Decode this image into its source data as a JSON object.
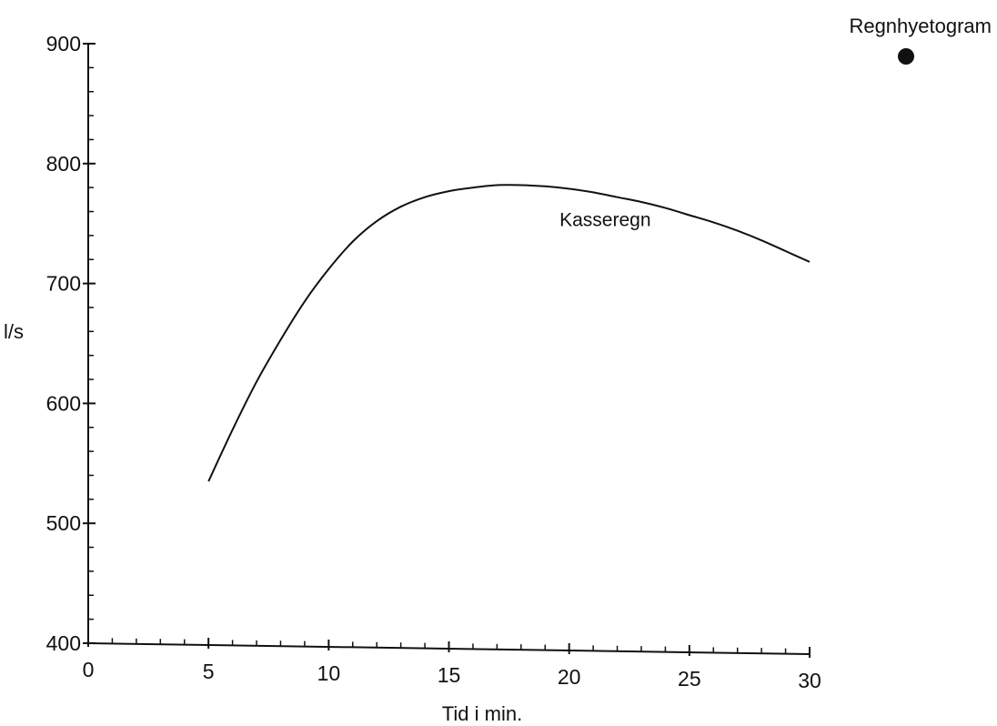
{
  "chart_data": {
    "type": "line",
    "title": "",
    "xlabel": "Tid i min.",
    "ylabel": "l/s",
    "xlim": [
      0,
      30
    ],
    "ylim": [
      400,
      900
    ],
    "x_ticks_major": [
      0,
      5,
      10,
      15,
      20,
      25,
      30
    ],
    "y_ticks_major": [
      400,
      500,
      600,
      700,
      800,
      900
    ],
    "grid": false,
    "legend": {
      "label": "Regnhyetogram",
      "placement": "top-right",
      "marker": "filled-circle"
    },
    "series": [
      {
        "name": "Kasseregn",
        "x": [
          5,
          6,
          7,
          8,
          9,
          10,
          11,
          12,
          13,
          14,
          15,
          16,
          17,
          18,
          19,
          20,
          21,
          22,
          23,
          24,
          25,
          26,
          27,
          28,
          29,
          30
        ],
        "y": [
          535,
          578,
          618,
          653,
          685,
          712,
          735,
          752,
          764,
          772,
          777,
          780,
          782,
          782,
          781,
          779,
          776,
          772,
          768,
          763,
          757,
          751,
          744,
          736,
          727,
          718
        ]
      }
    ],
    "annotations": [
      {
        "text": "Kasseregn",
        "x": 21.5,
        "y": 748
      }
    ],
    "colors": {
      "ink": "#111111",
      "background": "#ffffff"
    }
  }
}
